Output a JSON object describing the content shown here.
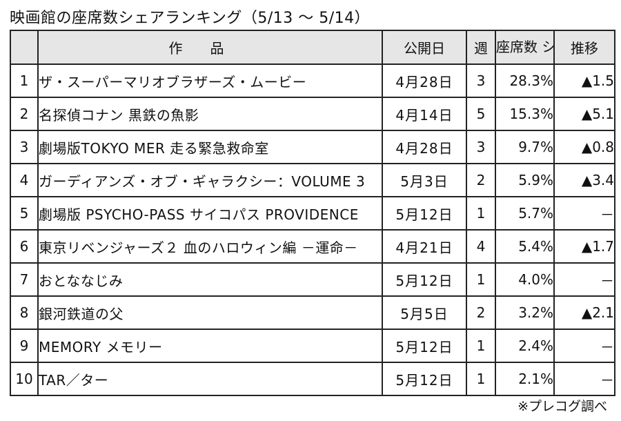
{
  "title": "映画館の座席数シェアランキング（5/13 ～ 5/14）",
  "header": {
    "rank": "",
    "title": "作品",
    "date": "公開日",
    "week": "週",
    "share": "座席数 シェア",
    "trend": "推移"
  },
  "rows": [
    {
      "rank": "1",
      "title": "ザ・スーパーマリオブラザーズ・ムービー",
      "date": "4月28日",
      "week": "3",
      "share": "28.3%",
      "trend": "▲1.5"
    },
    {
      "rank": "2",
      "title": "名探偵コナン 黒鉄の魚影",
      "date": "4月14日",
      "week": "5",
      "share": "15.3%",
      "trend": "▲5.1"
    },
    {
      "rank": "3",
      "title": "劇場版TOKYO MER 走る緊急救命室",
      "date": "4月28日",
      "week": "3",
      "share": "9.7%",
      "trend": "▲0.8"
    },
    {
      "rank": "4",
      "title": "ガーディアンズ・オブ・ギャラクシー：VOLUME 3",
      "date": "5月3日",
      "week": "2",
      "share": "5.9%",
      "trend": "▲3.4"
    },
    {
      "rank": "5",
      "title": "劇場版 PSYCHO-PASS サイコパス PROVIDENCE",
      "date": "5月12日",
      "week": "1",
      "share": "5.7%",
      "trend": "－"
    },
    {
      "rank": "6",
      "title": "東京リベンジャーズ２ 血のハロウィン編 －運命－",
      "date": "4月21日",
      "week": "4",
      "share": "5.4%",
      "trend": "▲1.7"
    },
    {
      "rank": "7",
      "title": "おとななじみ",
      "date": "5月12日",
      "week": "1",
      "share": "4.0%",
      "trend": "－"
    },
    {
      "rank": "8",
      "title": "銀河鉄道の父",
      "date": "5月5日",
      "week": "2",
      "share": "3.2%",
      "trend": "▲2.1"
    },
    {
      "rank": "9",
      "title": "MEMORY メモリー",
      "date": "5月12日",
      "week": "1",
      "share": "2.4%",
      "trend": "－"
    },
    {
      "rank": "10",
      "title": "TAR／ター",
      "date": "5月12日",
      "week": "1",
      "share": "2.1%",
      "trend": "－"
    }
  ],
  "source": "※プレコグ調べ"
}
